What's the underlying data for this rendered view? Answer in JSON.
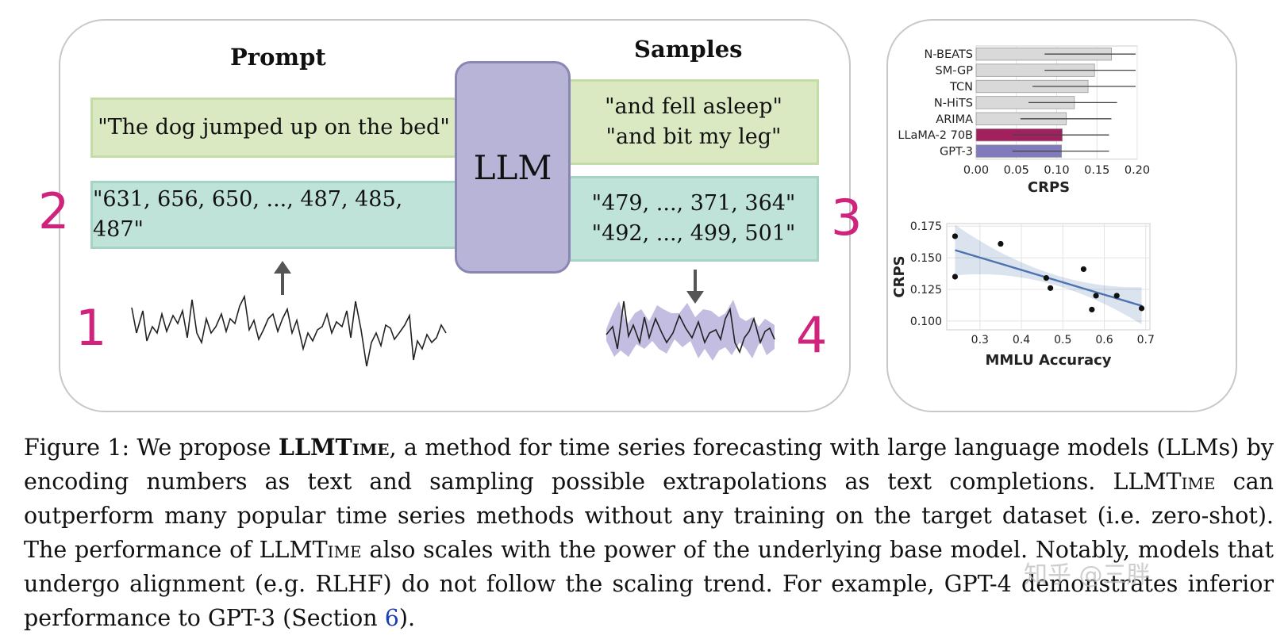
{
  "diagram": {
    "prompt_title": "Prompt",
    "samples_title": "Samples",
    "llm_label": "LLM",
    "prompt_text": "\"The dog jumped up on the bed\"",
    "prompt_numbers": "\"631, 656, 650, ..., 487, 485, 487\"",
    "sample_texts": [
      "\"and fell asleep\"",
      "\"and bit my leg\""
    ],
    "sample_numbers": [
      "\"479, ..., 371, 364\"",
      "\"492, ..., 499, 501\""
    ],
    "step_numbers": [
      "1",
      "2",
      "3",
      "4"
    ]
  },
  "chart_data": [
    {
      "type": "bar",
      "categories": [
        "N-BEATS",
        "SM-GP",
        "TCN",
        "N-HiTS",
        "ARIMA",
        "LLaMA-2 70B",
        "GPT-3"
      ],
      "values": [
        0.168,
        0.147,
        0.139,
        0.122,
        0.112,
        0.107,
        0.106
      ],
      "error_low": [
        0.085,
        0.085,
        0.07,
        0.065,
        0.055,
        0.045,
        0.045
      ],
      "error_high": [
        0.198,
        0.198,
        0.198,
        0.175,
        0.168,
        0.165,
        0.165
      ],
      "colors": [
        "#d9d9d9",
        "#d9d9d9",
        "#d9d9d9",
        "#d9d9d9",
        "#d9d9d9",
        "#a3205f",
        "#7f7bbd"
      ],
      "xlabel": "CRPS",
      "xlim": [
        0,
        0.2
      ],
      "xticks": [
        "0.00",
        "0.05",
        "0.10",
        "0.15",
        "0.20"
      ],
      "grid": true
    },
    {
      "type": "scatter",
      "x": [
        0.24,
        0.24,
        0.35,
        0.46,
        0.47,
        0.55,
        0.57,
        0.58,
        0.63,
        0.69
      ],
      "y": [
        0.167,
        0.135,
        0.161,
        0.134,
        0.126,
        0.141,
        0.109,
        0.12,
        0.12,
        0.11
      ],
      "trend": {
        "x": [
          0.24,
          0.69
        ],
        "y": [
          0.156,
          0.112
        ]
      },
      "xlabel": "MMLU Accuracy",
      "ylabel": "CRPS",
      "xlim": [
        0.22,
        0.71
      ],
      "ylim": [
        0.093,
        0.177
      ],
      "xticks": [
        "0.3",
        "0.4",
        "0.5",
        "0.6",
        "0.7"
      ],
      "yticks": [
        "0.100",
        "0.125",
        "0.150",
        "0.175"
      ],
      "grid": true
    }
  ],
  "caption": {
    "prefix": "Figure 1: We propose ",
    "method_name": "LLMTime",
    "line1_rest": ", a method for time series forecasting with large language models (LLMs) by encoding numbers as text and sampling possible extrapolations as text completions. ",
    "line3_rest": " can outperform many popular time series methods without any training on the target dataset (i.e. zero-shot). The performance of ",
    "line4_rest": " also scales with the power of the underlying base model. Notably, models that undergo alignment (e.g. RLHF) do not follow the scaling trend. For example, GPT-4 demonstrates inferior performance to GPT-3 (Section ",
    "section_ref": "6",
    "suffix": ")."
  },
  "watermark": "知乎 @三胖"
}
